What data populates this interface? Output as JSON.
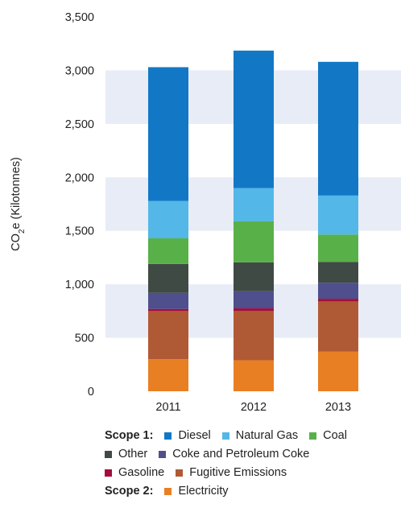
{
  "chart_data": {
    "type": "bar",
    "stacked": true,
    "categories": [
      "2011",
      "2012",
      "2013"
    ],
    "ylabel": "CO",
    "ylabel_sub": "2",
    "ylabel_rest": "e (Kilotonnes)",
    "ylim": [
      0,
      3500
    ],
    "yticks": [
      0,
      500,
      1000,
      1500,
      2000,
      2500,
      3000,
      3500
    ],
    "ytick_labels": [
      "0",
      "500",
      "1,000",
      "1,500",
      "2,000",
      "2,500",
      "3,000",
      "3,500"
    ],
    "grid": "alternating horizontal bands",
    "band_color": "#e8ecf6",
    "series": [
      {
        "name": "Electricity",
        "color": "#e87f23",
        "values": [
          300,
          290,
          370
        ]
      },
      {
        "name": "Fugitive Emissions",
        "color": "#b05a35",
        "values": [
          450,
          460,
          470
        ]
      },
      {
        "name": "Gasoline",
        "color": "#a50d3c",
        "values": [
          20,
          25,
          25
        ]
      },
      {
        "name": "Coke and Petroleum Coke",
        "color": "#4e4f8c",
        "values": [
          150,
          160,
          150
        ]
      },
      {
        "name": "Other",
        "color": "#404a44",
        "values": [
          270,
          270,
          195
        ]
      },
      {
        "name": "Coal",
        "color": "#58b148",
        "values": [
          240,
          385,
          255
        ]
      },
      {
        "name": "Natural Gas",
        "color": "#53b7e7",
        "values": [
          350,
          310,
          365
        ]
      },
      {
        "name": "Diesel",
        "color": "#1278c6",
        "values": [
          1250,
          1285,
          1250
        ]
      }
    ],
    "legend": {
      "position": "bottom",
      "scope1_label": "Scope 1:",
      "scope2_label": "Scope 2:",
      "rows": [
        {
          "heading": "Scope 1:",
          "items": [
            "Diesel",
            "Natural Gas",
            "Coal"
          ]
        },
        {
          "heading": "",
          "items": [
            "Other",
            "Coke and Petroleum Coke"
          ]
        },
        {
          "heading": "",
          "items": [
            "Gasoline",
            "Fugitive Emissions"
          ]
        },
        {
          "heading": "Scope 2:",
          "items": [
            "Electricity"
          ]
        }
      ]
    }
  }
}
